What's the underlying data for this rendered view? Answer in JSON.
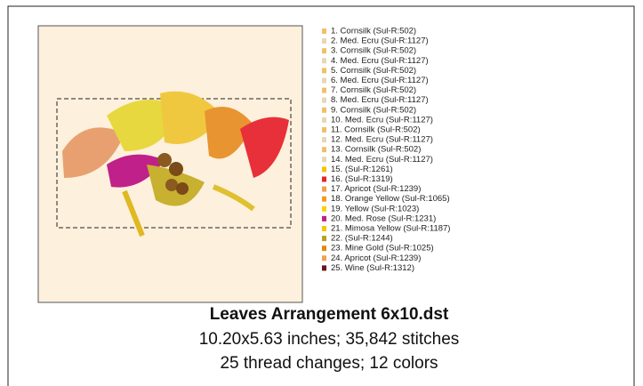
{
  "design": {
    "title": "Leaves Arrangement 6x10.dst",
    "size_line": "10.20x5.63 inches; 35,842 stitches",
    "changes_line": "25 thread changes; 12 colors"
  },
  "threads": [
    {
      "label": "1.   Cornsilk (Sul-R:502)",
      "color": "#f2bf68"
    },
    {
      "label": "2.   Med. Ecru (Sul-R:1127)",
      "color": "#e4d8b8"
    },
    {
      "label": "3.   Cornsilk (Sul-R:502)",
      "color": "#f2bf68"
    },
    {
      "label": "4.   Med. Ecru (Sul-R:1127)",
      "color": "#e4d8b8"
    },
    {
      "label": "5.   Cornsilk (Sul-R:502)",
      "color": "#f2bf68"
    },
    {
      "label": "6.   Med. Ecru (Sul-R:1127)",
      "color": "#e4d8b8"
    },
    {
      "label": "7.   Cornsilk (Sul-R:502)",
      "color": "#f2bf68"
    },
    {
      "label": "8.   Med. Ecru (Sul-R:1127)",
      "color": "#e4d8b8"
    },
    {
      "label": "9.   Cornsilk (Sul-R:502)",
      "color": "#f2bf68"
    },
    {
      "label": "10. Med. Ecru (Sul-R:1127)",
      "color": "#e4d8b8"
    },
    {
      "label": "11. Cornsilk (Sul-R:502)",
      "color": "#f2bf68"
    },
    {
      "label": "12. Med. Ecru (Sul-R:1127)",
      "color": "#e4d8b8"
    },
    {
      "label": "13. Cornsilk (Sul-R:502)",
      "color": "#f2bf68"
    },
    {
      "label": "14. Med. Ecru (Sul-R:1127)",
      "color": "#e4d8b8"
    },
    {
      "label": "15.  (Sul-R:1261)",
      "color": "#f4c400"
    },
    {
      "label": "16.  (Sul-R:1319)",
      "color": "#e8242c"
    },
    {
      "label": "17. Apricot (Sul-R:1239)",
      "color": "#f0a050"
    },
    {
      "label": "18. Orange Yellow (Sul-R:1065)",
      "color": "#f39c1f"
    },
    {
      "label": "19. Yellow (Sul-R:1023)",
      "color": "#f5d400"
    },
    {
      "label": "20. Med. Rose (Sul-R:1231)",
      "color": "#c0208a"
    },
    {
      "label": "21. Mimosa Yellow (Sul-R:1187)",
      "color": "#f5c800"
    },
    {
      "label": "22.  (Sul-R:1244)",
      "color": "#b8a020"
    },
    {
      "label": "23. Mine Gold (Sul-R:1025)",
      "color": "#e08a10"
    },
    {
      "label": "24. Apricot (Sul-R:1239)",
      "color": "#f0a050"
    },
    {
      "label": "25. Wine (Sul-R:1312)",
      "color": "#6a1420"
    }
  ]
}
